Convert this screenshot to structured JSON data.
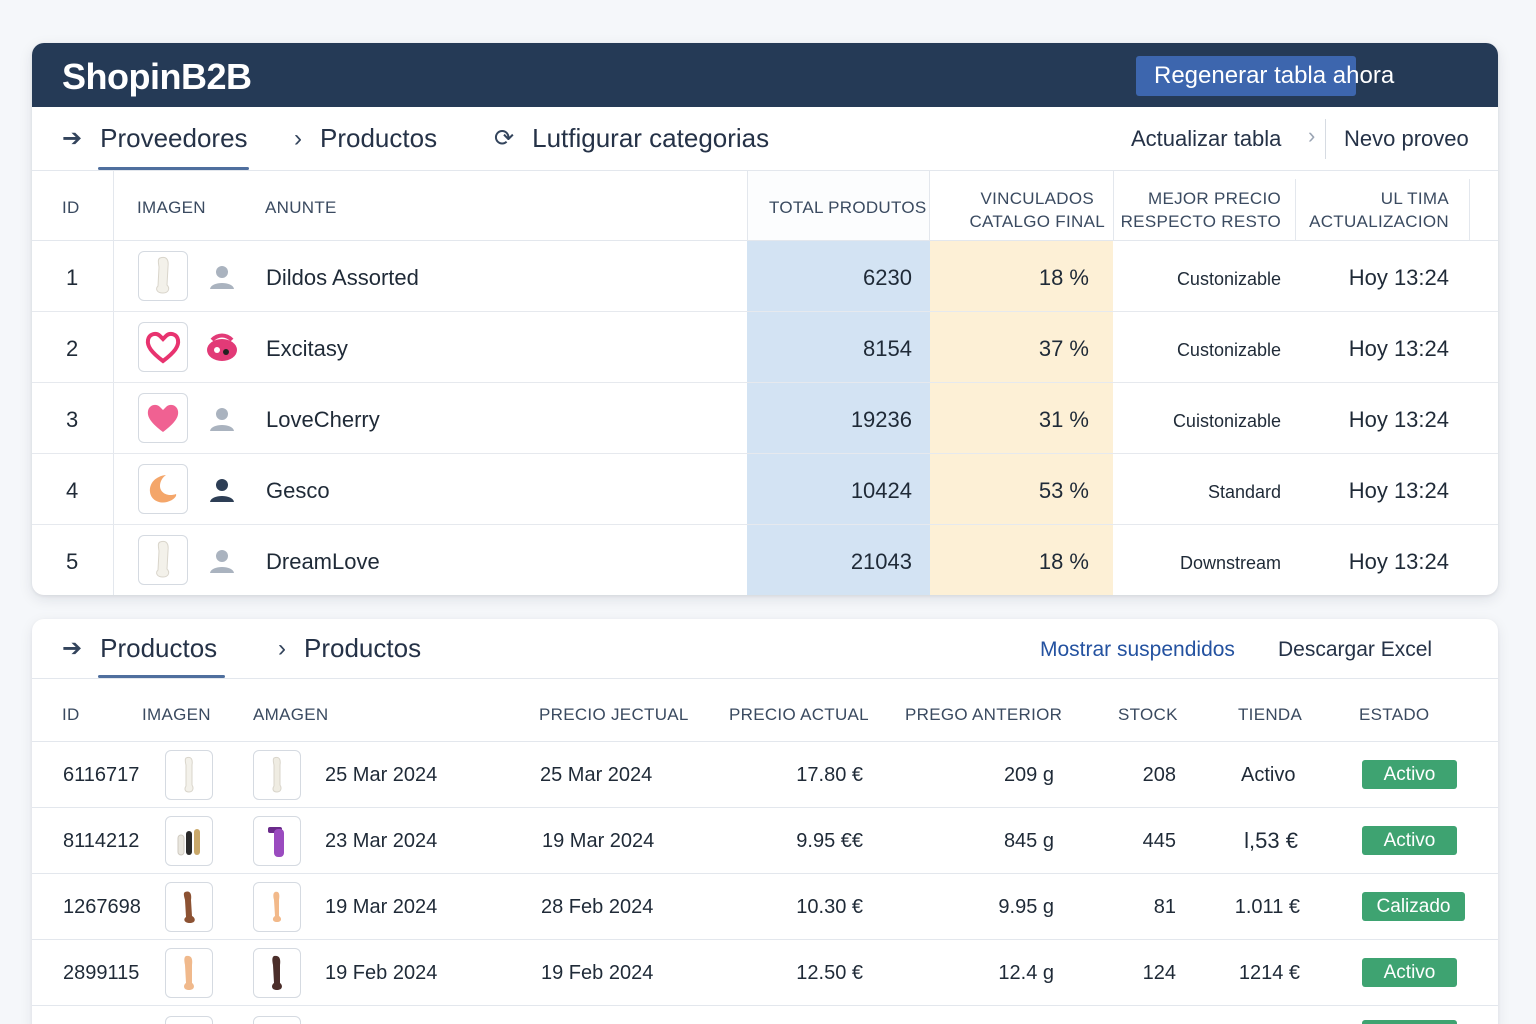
{
  "app": {
    "brand": "ShopinB2B",
    "regen_button": "Regenerar tabla ahora"
  },
  "nav1": {
    "items": [
      "Proveedores",
      "Productos",
      "Lutfigurar categorias"
    ],
    "right_update": "Actualizar tabla",
    "right_new": "Nevo proveo",
    "icons": [
      "arrow-right-icon",
      "chevron-right-icon",
      "refresh-icon"
    ]
  },
  "suppliers": {
    "headers": {
      "id": "ID",
      "imagen": "IMAGEN",
      "anunte": "ANUNTE",
      "total": "TOTAL PRODUTOS",
      "vinc1": "VINCULADOS",
      "vinc2": "CATALGO FINAL",
      "mejor1": "MEJOR PRECIO",
      "mejor2": "RESPECTO RESTO",
      "ult1": "UL TIMA",
      "ult2": "ACTUALIZACION"
    },
    "rows": [
      {
        "id": "1",
        "name": "Dildos Assorted",
        "total": "6230",
        "vinc": "18 %",
        "mejor": "Custonizable",
        "ultima": "Hoy 13:24",
        "icon": "white-product-icon",
        "avatar": "user-grey-icon"
      },
      {
        "id": "2",
        "name": "Excitasy",
        "total": "8154",
        "vinc": "37 %",
        "mejor": "Custonizable",
        "ultima": "Hoy 13:24",
        "icon": "heart-outline-icon",
        "avatar": "pink-logo-icon"
      },
      {
        "id": "3",
        "name": "LoveCherry",
        "total": "19236",
        "vinc": "31 %",
        "mejor": "Cuistonizable",
        "ultima": "Hoy 13:24",
        "icon": "heart-filled-icon",
        "avatar": "user-grey-icon"
      },
      {
        "id": "4",
        "name": "Gesco",
        "total": "10424",
        "vinc": "53 %",
        "mejor": "Standard",
        "ultima": "Hoy 13:24",
        "icon": "crescent-icon",
        "avatar": "user-dark-icon"
      },
      {
        "id": "5",
        "name": "DreamLove",
        "total": "21043",
        "vinc": "18 %",
        "mejor": "Downstream",
        "ultima": "Hoy 13:24",
        "icon": "white-product-icon",
        "avatar": "user-grey-icon"
      }
    ],
    "colors": {
      "total_bg": "#d3e3f3",
      "vinc_bg": "#fdf0d6"
    }
  },
  "nav2": {
    "items": [
      "Productos",
      "Productos"
    ],
    "show_suspended": "Mostrar suspendidos",
    "download_excel": "Descargar Excel"
  },
  "products": {
    "headers": {
      "id": "ID",
      "imagen": "IMAGEN",
      "amagen": "AMAGEN",
      "precio_jectual": "PRECIO JECTUAL",
      "precio_actual": "PRECIO ACTUAL",
      "prego_anterior": "PREGO ANTERIOR",
      "stock": "STOCK",
      "tienda": "TIENDA",
      "estado": "ESTADO"
    },
    "rows": [
      {
        "id": "6116717",
        "date1": "25 Mar 2024",
        "date2": "25 Mar 2024",
        "precio": "17.80 €",
        "anterior": "209 g",
        "stock": "208",
        "tienda": "Activo",
        "estado": "Activo",
        "thumb1": "white-product-icon",
        "thumb2": "white-product-icon"
      },
      {
        "id": "8114212",
        "date1": "23 Mar 2024",
        "date2": "19 Mar 2024",
        "precio": "9.95 €€",
        "anterior": "845 g",
        "stock": "445",
        "tienda": "l,53 €",
        "estado": "Activo",
        "thumb1": "multi-product-icon",
        "thumb2": "purple-product-icon"
      },
      {
        "id": "1267698",
        "date1": "19 Mar 2024",
        "date2": "28 Feb 2024",
        "precio": "10.30 €",
        "anterior": "9.95 g",
        "stock": "81",
        "tienda": "1.011 €",
        "estado": "Calizado",
        "thumb1": "brown-product-icon",
        "thumb2": "tan-product-icon"
      },
      {
        "id": "2899115",
        "date1": "19 Feb 2024",
        "date2": "19 Feb 2024",
        "precio": "12.50 €",
        "anterior": "12.4 g",
        "stock": "124",
        "tienda": "1214 €",
        "estado": "Activo",
        "thumb1": "tan-product-icon",
        "thumb2": "dark-product-icon"
      }
    ],
    "colors": {
      "badge": "#3ea371"
    }
  }
}
